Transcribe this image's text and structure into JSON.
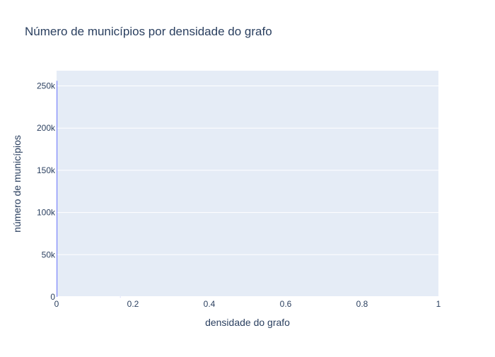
{
  "chart_data": {
    "type": "bar",
    "title": "Número de municípios por densidade do grafo",
    "xlabel": "densidade do grafo",
    "ylabel": "número de municípios",
    "xlim": [
      0,
      1
    ],
    "ylim": [
      0,
      268000
    ],
    "xticks": [
      0,
      0.2,
      0.4,
      0.6,
      0.8,
      1
    ],
    "xtick_labels": [
      "0",
      "0.2",
      "0.4",
      "0.6",
      "0.8",
      "1"
    ],
    "yticks": [
      0,
      50000,
      100000,
      150000,
      200000,
      250000
    ],
    "ytick_labels": [
      "0",
      "50k",
      "100k",
      "150k",
      "200k",
      "250k"
    ],
    "grid": true,
    "legend": "none",
    "colors": {
      "plot_background": "#E5ECF6",
      "grid": "#ffffff",
      "bar": "#636EFA",
      "text": "#2a3f5f"
    },
    "bins": [
      {
        "x0": 0.0,
        "x1": 0.002,
        "value": 256000
      },
      {
        "x0": 0.166,
        "x1": 0.168,
        "value": 150
      }
    ]
  }
}
